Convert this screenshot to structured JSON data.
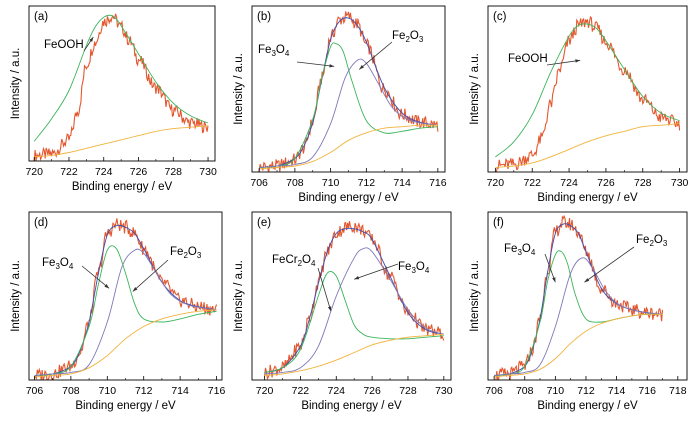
{
  "figure": {
    "colors": {
      "raw": "#e4572e",
      "fit": "#3b4fb5",
      "green": "#3cb55a",
      "purple": "#7f78b8",
      "background": "#f2b33d",
      "axis": "#000000"
    }
  },
  "chart_data": [
    {
      "type": "line",
      "panel": "(a)",
      "xlabel": "Binding energy / eV",
      "ylabel": "Intensity / a.u.",
      "xlim": [
        719.7,
        730.4
      ],
      "ylim": [
        0,
        1.1
      ],
      "xticks": [
        "720",
        "722",
        "724",
        "726",
        "728",
        "730"
      ],
      "series": [
        {
          "role": "raw",
          "x": [
            720,
            721,
            722,
            722.5,
            723,
            723.5,
            724,
            724.5,
            725,
            725.5,
            726,
            727,
            728,
            729,
            730
          ],
          "y": [
            0.04,
            0.05,
            0.15,
            0.35,
            0.68,
            0.84,
            0.99,
            1.03,
            0.95,
            0.85,
            0.72,
            0.52,
            0.36,
            0.27,
            0.24
          ]
        },
        {
          "role": "component",
          "name": "FeOOH",
          "x": [
            720,
            721,
            722,
            723,
            723.5,
            724,
            724.5,
            725,
            726,
            727,
            728,
            729,
            730
          ],
          "y": [
            0.14,
            0.3,
            0.5,
            0.82,
            0.95,
            1.02,
            1.03,
            0.96,
            0.76,
            0.56,
            0.41,
            0.32,
            0.27
          ]
        },
        {
          "role": "background",
          "x": [
            720,
            721,
            722,
            723,
            724,
            725,
            726,
            727,
            728,
            729,
            730
          ],
          "y": [
            0.03,
            0.04,
            0.06,
            0.09,
            0.12,
            0.15,
            0.18,
            0.21,
            0.23,
            0.24,
            0.25
          ]
        }
      ],
      "annotations": [
        {
          "text": "FeOOH"
        }
      ]
    },
    {
      "type": "line",
      "panel": "(b)",
      "xlabel": "Binding energy / eV",
      "ylabel": "Intensity / a.u.",
      "xlim": [
        705.6,
        716.4
      ],
      "ylim": [
        0,
        1.1
      ],
      "xticks": [
        "706",
        "708",
        "710",
        "712",
        "714",
        "716"
      ],
      "series": [
        {
          "role": "raw",
          "x": [
            706,
            707,
            708,
            708.5,
            709,
            709.5,
            710,
            710.5,
            711,
            711.5,
            712,
            713,
            714,
            715,
            716
          ],
          "y": [
            0.03,
            0.04,
            0.08,
            0.16,
            0.33,
            0.62,
            0.89,
            1.01,
            1.03,
            0.98,
            0.84,
            0.55,
            0.38,
            0.33,
            0.31
          ]
        },
        {
          "role": "fit",
          "x": [
            706,
            707,
            708,
            708.5,
            709,
            709.5,
            710,
            710.5,
            711,
            711.5,
            712,
            713,
            714,
            715,
            716
          ],
          "y": [
            0.03,
            0.04,
            0.09,
            0.17,
            0.33,
            0.61,
            0.88,
            1.0,
            1.02,
            0.97,
            0.86,
            0.56,
            0.39,
            0.33,
            0.31
          ]
        },
        {
          "role": "component",
          "name": "Fe3O4",
          "x": [
            706,
            707,
            708,
            709,
            709.5,
            710,
            710.3,
            710.7,
            711.2,
            712,
            713,
            714,
            715,
            716
          ],
          "y": [
            0.03,
            0.04,
            0.09,
            0.35,
            0.62,
            0.83,
            0.85,
            0.8,
            0.6,
            0.34,
            0.26,
            0.27,
            0.29,
            0.3
          ]
        },
        {
          "role": "component",
          "name": "Fe2O3",
          "x": [
            706,
            707,
            708,
            709,
            710,
            710.8,
            711.5,
            712,
            712.7,
            713.5,
            714.5,
            716
          ],
          "y": [
            0.03,
            0.04,
            0.05,
            0.1,
            0.32,
            0.62,
            0.74,
            0.72,
            0.58,
            0.42,
            0.34,
            0.31
          ]
        },
        {
          "role": "background",
          "x": [
            706,
            707,
            708,
            709,
            710,
            711,
            712,
            713,
            714,
            715,
            716
          ],
          "y": [
            0.02,
            0.03,
            0.04,
            0.07,
            0.13,
            0.21,
            0.26,
            0.29,
            0.3,
            0.31,
            0.31
          ]
        }
      ],
      "annotations": [
        {
          "text": "Fe3O4"
        },
        {
          "text": "Fe2O3"
        }
      ]
    },
    {
      "type": "line",
      "panel": "(c)",
      "xlabel": "Binding energy / eV",
      "ylabel": "Intensity / a.u.",
      "xlim": [
        719.6,
        730.4
      ],
      "ylim": [
        0,
        1.1
      ],
      "xticks": [
        "720",
        "722",
        "724",
        "726",
        "728",
        "730"
      ],
      "series": [
        {
          "role": "raw",
          "x": [
            720,
            721,
            722,
            722.5,
            723,
            723.5,
            724,
            724.5,
            725,
            725.5,
            726,
            727,
            728,
            729,
            730
          ],
          "y": [
            0.04,
            0.05,
            0.11,
            0.22,
            0.45,
            0.68,
            0.87,
            0.97,
            1.0,
            0.95,
            0.86,
            0.68,
            0.48,
            0.36,
            0.32
          ]
        },
        {
          "role": "component",
          "name": "FeOOH",
          "x": [
            720,
            721,
            722,
            723,
            724,
            724.5,
            725,
            725.5,
            726,
            727,
            728,
            729,
            730
          ],
          "y": [
            0.1,
            0.2,
            0.38,
            0.66,
            0.9,
            0.97,
            0.98,
            0.95,
            0.87,
            0.68,
            0.5,
            0.39,
            0.34
          ]
        },
        {
          "role": "background",
          "x": [
            720,
            721,
            722,
            723,
            724,
            725,
            726,
            727,
            728,
            729,
            730
          ],
          "y": [
            0.03,
            0.04,
            0.06,
            0.1,
            0.15,
            0.2,
            0.24,
            0.27,
            0.3,
            0.31,
            0.32
          ]
        }
      ],
      "annotations": [
        {
          "text": "FeOOH"
        }
      ]
    },
    {
      "type": "line",
      "panel": "(d)",
      "xlabel": "Binding energy / eV",
      "ylabel": "Intensity / a.u.",
      "xlim": [
        705.7,
        716.3
      ],
      "ylim": [
        0,
        1.1
      ],
      "xticks": [
        "706",
        "708",
        "710",
        "712",
        "714",
        "716"
      ],
      "series": [
        {
          "role": "raw",
          "x": [
            706,
            707,
            708,
            708.5,
            709,
            709.5,
            710,
            710.5,
            711,
            711.5,
            712,
            713,
            714,
            715,
            716
          ],
          "y": [
            0.03,
            0.04,
            0.09,
            0.18,
            0.38,
            0.7,
            0.96,
            1.02,
            1.0,
            0.96,
            0.86,
            0.64,
            0.52,
            0.48,
            0.46
          ]
        },
        {
          "role": "fit",
          "x": [
            706,
            707,
            708,
            708.5,
            709,
            709.5,
            710,
            710.5,
            711,
            711.5,
            712,
            713,
            714,
            715,
            716
          ],
          "y": [
            0.03,
            0.04,
            0.09,
            0.19,
            0.38,
            0.69,
            0.95,
            1.01,
            1.0,
            0.96,
            0.86,
            0.64,
            0.52,
            0.48,
            0.46
          ]
        },
        {
          "role": "component",
          "name": "Fe3O4",
          "x": [
            706,
            707,
            708,
            709,
            709.5,
            710,
            710.5,
            711,
            711.5,
            712,
            713,
            714,
            715,
            716
          ],
          "y": [
            0.03,
            0.04,
            0.09,
            0.35,
            0.62,
            0.85,
            0.86,
            0.7,
            0.5,
            0.4,
            0.38,
            0.4,
            0.43,
            0.45
          ]
        },
        {
          "role": "component",
          "name": "Fe2O3",
          "x": [
            706,
            707,
            708,
            709,
            710,
            710.8,
            711.5,
            712,
            712.7,
            713.5,
            714.5,
            716
          ],
          "y": [
            0.03,
            0.04,
            0.05,
            0.1,
            0.38,
            0.74,
            0.85,
            0.83,
            0.7,
            0.56,
            0.49,
            0.46
          ]
        },
        {
          "role": "background",
          "x": [
            706,
            707,
            708,
            709,
            710,
            711,
            712,
            713,
            714,
            715,
            716
          ],
          "y": [
            0.02,
            0.03,
            0.04,
            0.08,
            0.16,
            0.27,
            0.35,
            0.4,
            0.43,
            0.45,
            0.46
          ]
        }
      ],
      "annotations": [
        {
          "text": "Fe3O4"
        },
        {
          "text": "Fe2O3"
        }
      ]
    },
    {
      "type": "line",
      "panel": "(e)",
      "xlabel": "Binding energy / eV",
      "ylabel": "Intensity / a.u.",
      "xlim": [
        719.3,
        730.4
      ],
      "ylim": [
        0,
        1.1
      ],
      "xticks": [
        "720",
        "722",
        "724",
        "726",
        "728",
        "730"
      ],
      "series": [
        {
          "role": "raw",
          "x": [
            720,
            721,
            722,
            722.5,
            723,
            723.5,
            724,
            724.5,
            725,
            725.5,
            726,
            727,
            728,
            729,
            730
          ],
          "y": [
            0.05,
            0.08,
            0.22,
            0.4,
            0.64,
            0.84,
            0.96,
            1.0,
            1.01,
            0.98,
            0.92,
            0.68,
            0.44,
            0.33,
            0.3
          ]
        },
        {
          "role": "fit",
          "x": [
            720,
            721,
            722,
            722.5,
            723,
            723.5,
            724,
            724.5,
            725,
            725.5,
            726,
            727,
            728,
            729,
            730
          ],
          "y": [
            0.05,
            0.08,
            0.22,
            0.4,
            0.63,
            0.84,
            0.96,
            0.99,
            0.99,
            0.97,
            0.92,
            0.68,
            0.44,
            0.33,
            0.3
          ]
        },
        {
          "role": "component",
          "name": "FeCr2O4",
          "x": [
            720,
            721,
            722,
            723,
            723.5,
            724,
            724.5,
            725,
            725.5,
            726,
            727,
            728,
            729,
            730
          ],
          "y": [
            0.05,
            0.08,
            0.2,
            0.55,
            0.7,
            0.68,
            0.52,
            0.36,
            0.3,
            0.28,
            0.27,
            0.27,
            0.28,
            0.29
          ]
        },
        {
          "role": "component",
          "name": "Fe3O4",
          "x": [
            720,
            721,
            722,
            723,
            724,
            725,
            725.5,
            726,
            727,
            728,
            729,
            730
          ],
          "y": [
            0.04,
            0.05,
            0.08,
            0.22,
            0.55,
            0.8,
            0.86,
            0.84,
            0.66,
            0.46,
            0.34,
            0.3
          ]
        },
        {
          "role": "background",
          "x": [
            720,
            721,
            722,
            723,
            724,
            725,
            726,
            727,
            728,
            729,
            730
          ],
          "y": [
            0.03,
            0.04,
            0.06,
            0.09,
            0.13,
            0.18,
            0.23,
            0.26,
            0.28,
            0.29,
            0.3
          ]
        }
      ],
      "annotations": [
        {
          "text": "FeCr2O4"
        },
        {
          "text": "Fe3O4"
        }
      ]
    },
    {
      "type": "line",
      "panel": "(f)",
      "xlabel": "Binding energy / eV",
      "ylabel": "Intensity / a.u.",
      "xlim": [
        705.6,
        718.6
      ],
      "ylim": [
        0,
        1.1
      ],
      "xticks": [
        "706",
        "708",
        "710",
        "712",
        "714",
        "716",
        "718"
      ],
      "series": [
        {
          "role": "raw",
          "x": [
            706,
            707,
            708,
            708.5,
            709,
            709.5,
            710,
            710.5,
            711,
            711.5,
            712,
            713,
            714,
            715,
            716,
            717
          ],
          "y": [
            0.03,
            0.04,
            0.09,
            0.2,
            0.4,
            0.72,
            0.97,
            1.03,
            1.02,
            0.97,
            0.84,
            0.6,
            0.5,
            0.46,
            0.44,
            0.43
          ]
        },
        {
          "role": "fit",
          "x": [
            706,
            707,
            708,
            708.5,
            709,
            709.5,
            710,
            710.5,
            711,
            711.5,
            712,
            713,
            714,
            715,
            716,
            717
          ],
          "y": [
            0.03,
            0.04,
            0.09,
            0.2,
            0.4,
            0.71,
            0.96,
            1.02,
            1.01,
            0.96,
            0.84,
            0.6,
            0.5,
            0.46,
            0.44,
            0.43
          ]
        },
        {
          "role": "component",
          "name": "Fe3O4",
          "x": [
            706,
            707,
            708,
            709,
            709.5,
            710,
            710.4,
            710.8,
            711.3,
            712,
            713,
            714,
            715,
            716,
            717
          ],
          "y": [
            0.03,
            0.04,
            0.09,
            0.38,
            0.65,
            0.82,
            0.84,
            0.76,
            0.56,
            0.4,
            0.38,
            0.4,
            0.42,
            0.43,
            0.43
          ]
        },
        {
          "role": "component",
          "name": "Fe2O3",
          "x": [
            706,
            707,
            708,
            709,
            710,
            711,
            711.8,
            712.5,
            713.3,
            714.2,
            715.5,
            717
          ],
          "y": [
            0.03,
            0.04,
            0.05,
            0.1,
            0.35,
            0.7,
            0.8,
            0.72,
            0.58,
            0.49,
            0.45,
            0.43
          ]
        },
        {
          "role": "background",
          "x": [
            706,
            707,
            708,
            709,
            710,
            711,
            712,
            713,
            714,
            715,
            716,
            717
          ],
          "y": [
            0.02,
            0.03,
            0.04,
            0.07,
            0.14,
            0.24,
            0.32,
            0.37,
            0.4,
            0.42,
            0.43,
            0.43
          ]
        }
      ],
      "annotations": [
        {
          "text": "Fe3O4"
        },
        {
          "text": "Fe2O3"
        }
      ]
    }
  ]
}
